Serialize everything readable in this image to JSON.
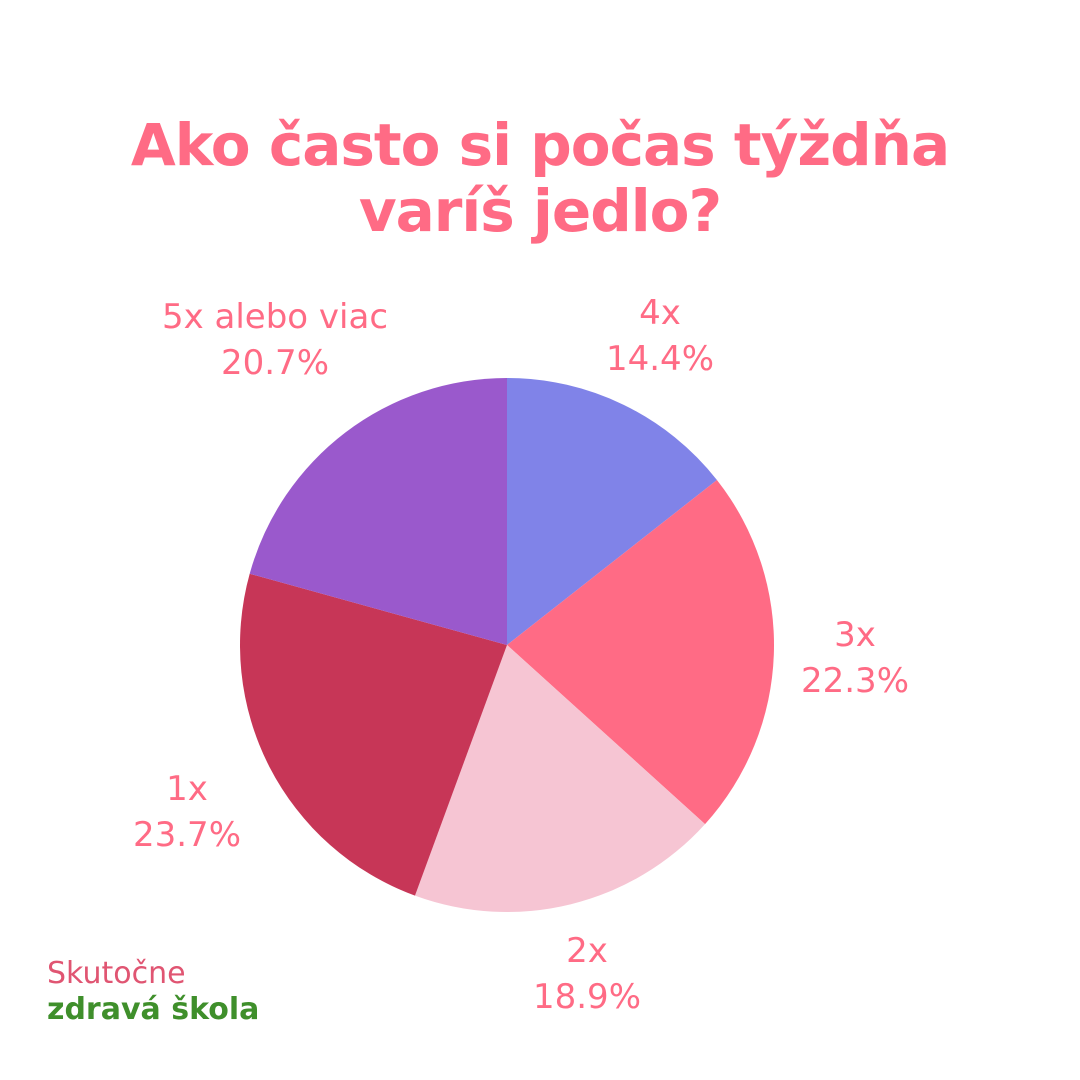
{
  "chart_data": {
    "type": "pie",
    "title_lines": [
      "Ako často si počas týždňa",
      "varíš jedlo?"
    ],
    "start_angle_deg": 0,
    "direction": "clockwise",
    "slices": [
      {
        "label": "4x",
        "value": 14.4,
        "value_label": "14.4%",
        "color": "#8083e8"
      },
      {
        "label": "3x",
        "value": 22.3,
        "value_label": "22.3%",
        "color": "#ff6b85"
      },
      {
        "label": "2x",
        "value": 18.9,
        "value_label": "18.9%",
        "color": "#f6c5d3"
      },
      {
        "label": "1x",
        "value": 23.7,
        "value_label": "23.7%",
        "color": "#c73657"
      },
      {
        "label": "5x alebo viac",
        "value": 20.7,
        "value_label": "20.7%",
        "color": "#9a59cc"
      }
    ],
    "label_color": "#ff6b85"
  },
  "branding": {
    "line1": "Skutočne",
    "line2": "zdravá škola"
  }
}
